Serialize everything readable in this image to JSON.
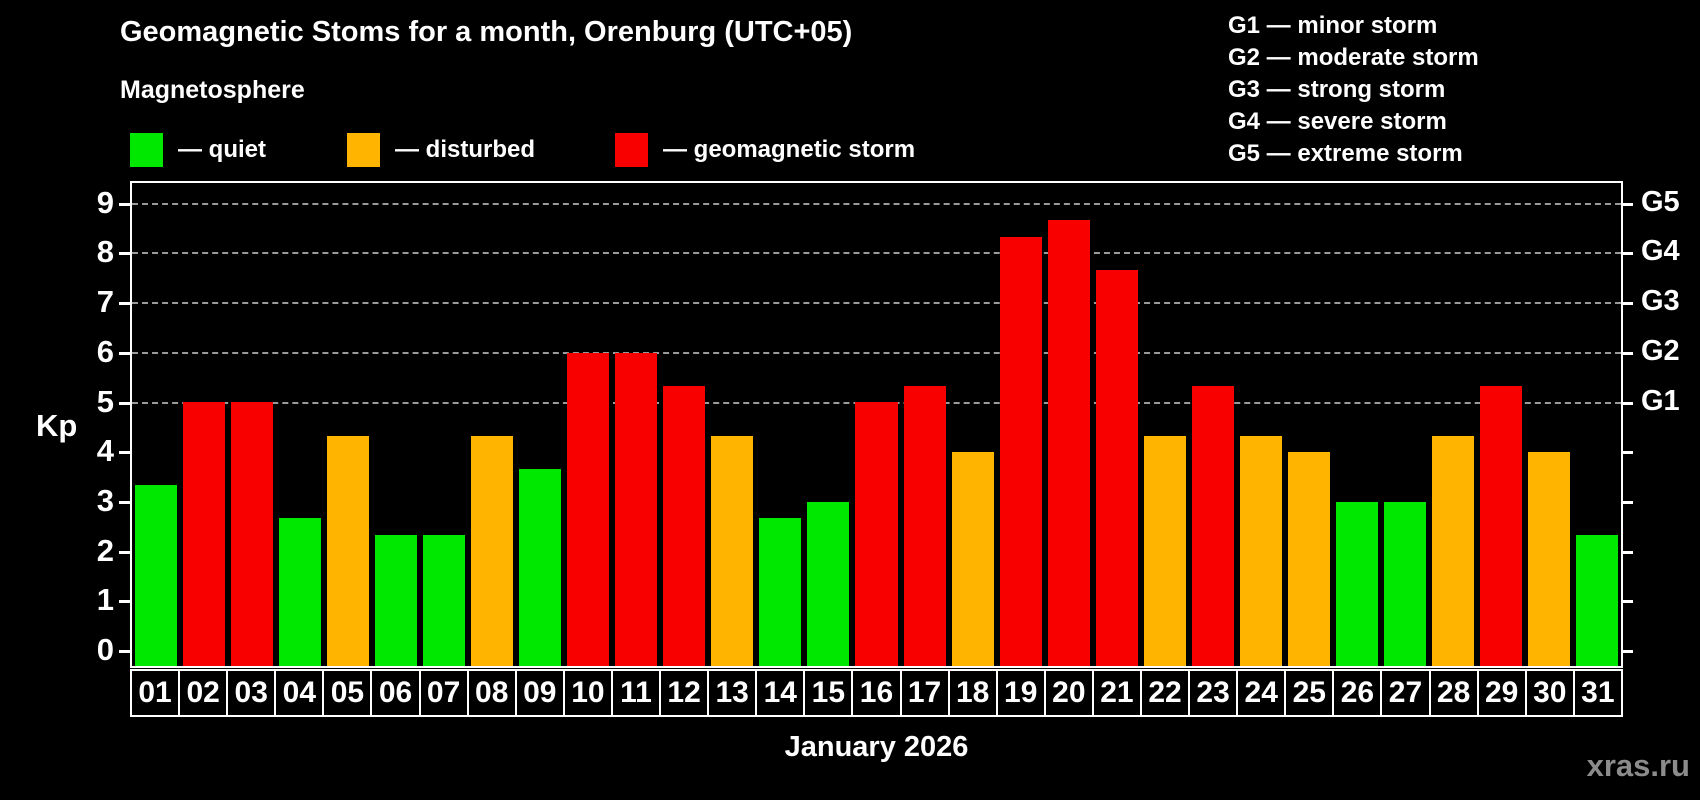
{
  "header": {
    "title": "Geomagnetic Stoms for a month, Orenburg (UTC+05)",
    "subtitle": "Magnetosphere"
  },
  "legend": {
    "items": [
      {
        "key": "quiet",
        "label": "— quiet",
        "color": "#00e800"
      },
      {
        "key": "disturbed",
        "label": "— disturbed",
        "color": "#ffb400"
      },
      {
        "key": "storm",
        "label": "— geomagnetic storm",
        "color": "#f80000"
      }
    ]
  },
  "storm_scale": {
    "items": [
      "G1 — minor storm",
      "G2 — moderate storm",
      "G3 — strong storm",
      "G4 — severe storm",
      "G5 — extreme storm"
    ]
  },
  "axes": {
    "y_axis_label": "Kp",
    "y_ticks": [
      "0",
      "1",
      "2",
      "3",
      "4",
      "5",
      "6",
      "7",
      "8",
      "9"
    ],
    "right_axis": [
      {
        "label": "G1",
        "kp": 5
      },
      {
        "label": "G2",
        "kp": 6
      },
      {
        "label": "G3",
        "kp": 7
      },
      {
        "label": "G4",
        "kp": 8
      },
      {
        "label": "G5",
        "kp": 9
      }
    ]
  },
  "chart_data": {
    "type": "bar",
    "title": "Geomagnetic Stoms for a month, Orenburg (UTC+05)",
    "xlabel": "January 2026",
    "ylabel": "Kp",
    "ylim": [
      0,
      9
    ],
    "grid": "dashed horizontal lines at Kp 5-9 (G1-G5 levels)",
    "legend_position": "top-left",
    "categories": [
      "01",
      "02",
      "03",
      "04",
      "05",
      "06",
      "07",
      "08",
      "09",
      "10",
      "11",
      "12",
      "13",
      "14",
      "15",
      "16",
      "17",
      "18",
      "19",
      "20",
      "21",
      "22",
      "23",
      "24",
      "25",
      "26",
      "27",
      "28",
      "29",
      "30",
      "31"
    ],
    "values": [
      3.33,
      5.0,
      5.0,
      2.67,
      4.33,
      2.33,
      2.33,
      4.33,
      3.67,
      6.0,
      6.0,
      5.33,
      4.33,
      2.67,
      3.0,
      5.0,
      5.33,
      4.0,
      8.33,
      8.67,
      7.67,
      4.33,
      5.33,
      4.33,
      4.0,
      3.0,
      3.0,
      4.33,
      5.33,
      4.0,
      2.33
    ],
    "states": [
      "quiet",
      "storm",
      "storm",
      "quiet",
      "disturbed",
      "quiet",
      "quiet",
      "disturbed",
      "quiet",
      "storm",
      "storm",
      "storm",
      "disturbed",
      "quiet",
      "quiet",
      "storm",
      "storm",
      "disturbed",
      "storm",
      "storm",
      "storm",
      "disturbed",
      "storm",
      "disturbed",
      "disturbed",
      "quiet",
      "quiet",
      "disturbed",
      "storm",
      "disturbed",
      "quiet"
    ]
  },
  "footer": {
    "month_label": "January 2026",
    "watermark": "xras.ru"
  }
}
